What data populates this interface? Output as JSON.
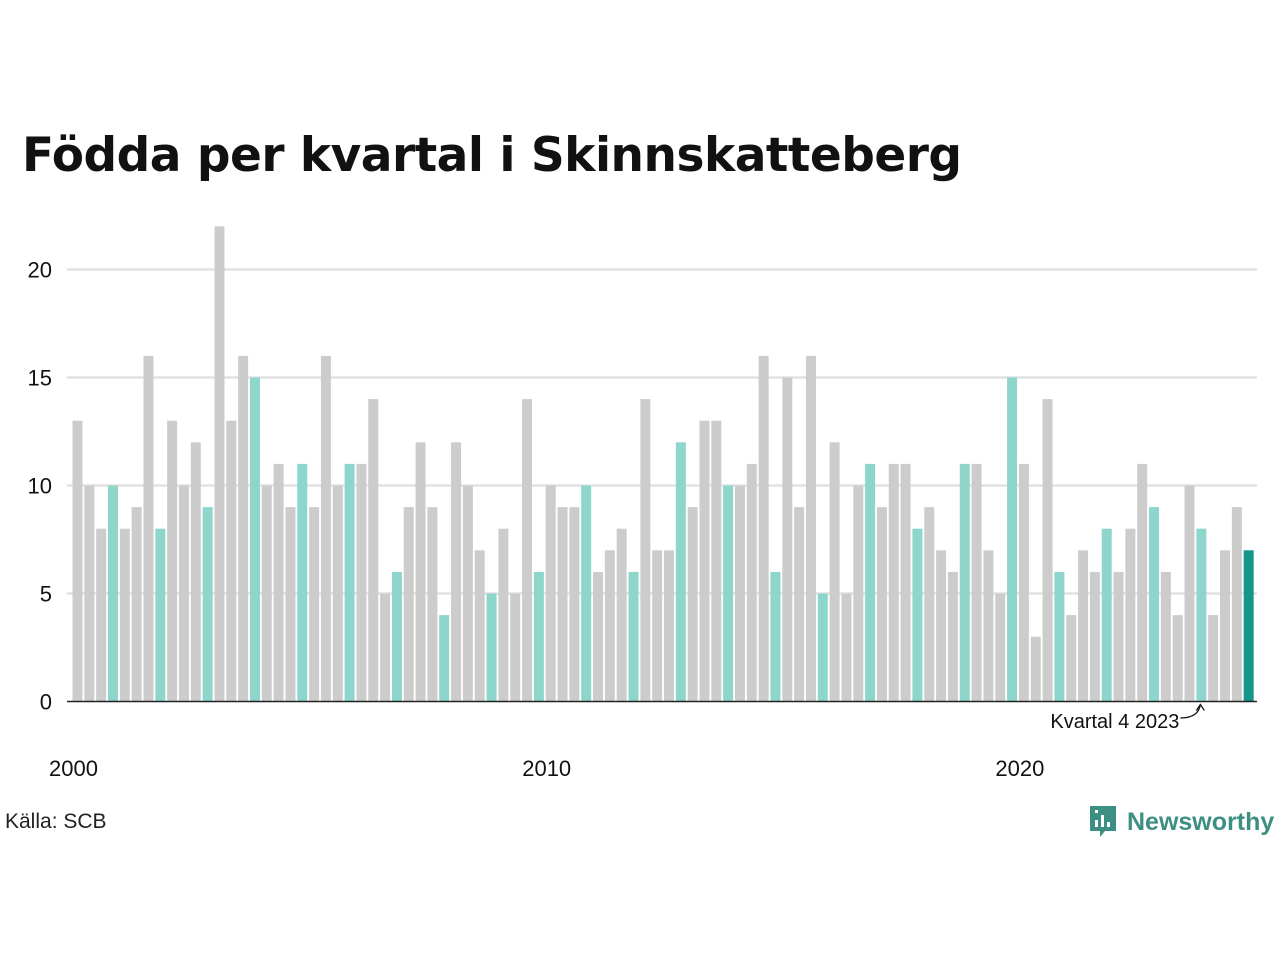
{
  "title": "Födda per kvartal i Skinnskatteberg",
  "source": "Källa: SCB",
  "brand": {
    "name": "Newsworthy",
    "icon": "bar-chart-speech-bubble-icon"
  },
  "colors": {
    "bar_default": "#cccccc",
    "bar_q4": "#8ed5cc",
    "bar_latest": "#14968a",
    "gridline": "#e2e2e2",
    "baseline": "#222222",
    "text": "#111111",
    "brand": "#3e8f83"
  },
  "chart_data": {
    "type": "bar",
    "title": "Födda per kvartal i Skinnskatteberg",
    "xlabel": "",
    "ylabel": "",
    "ylim": [
      0,
      22
    ],
    "yticks": [
      0,
      5,
      10,
      15,
      20
    ],
    "xtick_labels": [
      "2000",
      "2010",
      "2020"
    ],
    "grid": true,
    "highlight": "Kvartal 4 för varje år markerat i turkos; senaste kvartalet i mörkare turkos",
    "annotation": {
      "text": "Kvartal 4 2023",
      "target_year": 2023,
      "target_quarter": 4
    },
    "start": {
      "year": 2000,
      "quarter": 1
    },
    "values": [
      13,
      10,
      8,
      10,
      8,
      9,
      16,
      8,
      13,
      10,
      12,
      9,
      22,
      13,
      16,
      15,
      10,
      11,
      9,
      11,
      9,
      16,
      10,
      11,
      11,
      14,
      5,
      6,
      9,
      12,
      9,
      4,
      12,
      10,
      7,
      5,
      8,
      5,
      14,
      6,
      10,
      9,
      9,
      10,
      6,
      7,
      8,
      6,
      14,
      7,
      7,
      12,
      9,
      13,
      13,
      10,
      10,
      11,
      16,
      6,
      15,
      9,
      16,
      5,
      12,
      5,
      10,
      11,
      9,
      11,
      11,
      8,
      9,
      7,
      6,
      11,
      11,
      7,
      5,
      15,
      11,
      3,
      14,
      6,
      4,
      7,
      6,
      8,
      6,
      8,
      11,
      9,
      6,
      4,
      10,
      8,
      4,
      7,
      9,
      7
    ]
  }
}
